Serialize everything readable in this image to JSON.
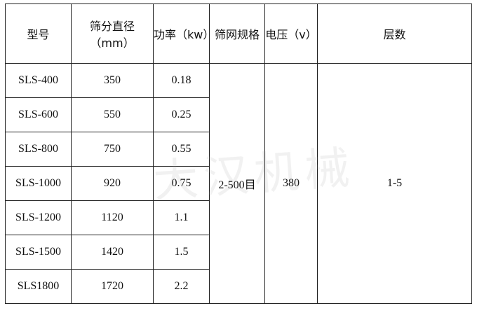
{
  "headers": [
    "型号",
    "筛分直径（mm）",
    "功率（kw）",
    "筛网规格",
    "电压（v）",
    "层数"
  ],
  "rows": [
    {
      "model": "SLS-400",
      "diameter": "350",
      "power": "0.18"
    },
    {
      "model": "SLS-600",
      "diameter": "550",
      "power": "0.25"
    },
    {
      "model": "SLS-800",
      "diameter": "750",
      "power": "0.55"
    },
    {
      "model": "SLS-1000",
      "diameter": "920",
      "power": "0.75"
    },
    {
      "model": "SLS-1200",
      "diameter": "1120",
      "power": "1.1"
    },
    {
      "model": "SLS-1500",
      "diameter": "1420",
      "power": "1.5"
    },
    {
      "model": "SLS1800",
      "diameter": "1720",
      "power": "2.2"
    }
  ],
  "merged": {
    "mesh": "2-500目",
    "voltage": "380",
    "layers": "1-5"
  },
  "watermark": "大汉机械"
}
